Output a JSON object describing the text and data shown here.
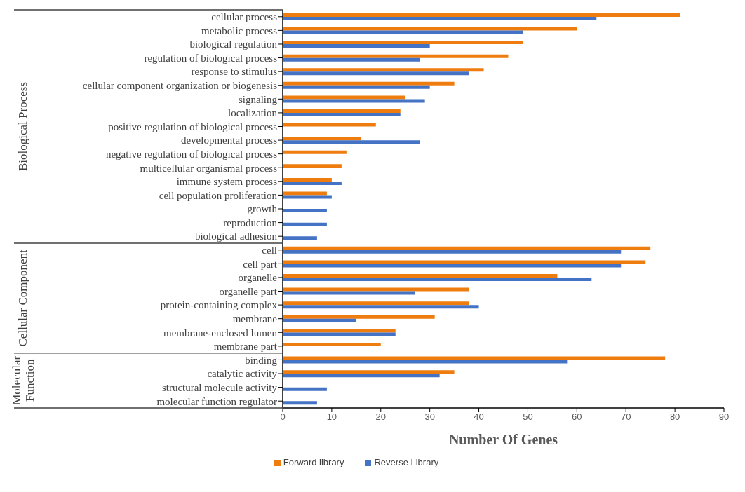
{
  "chart_data": {
    "type": "bar",
    "orientation": "horizontal",
    "xlabel": "Number Of Genes",
    "categories": [
      "cellular process",
      "metabolic process",
      "biological regulation",
      "regulation of biological process",
      "response to stimulus",
      "cellular component organization or biogenesis",
      "signaling",
      "localization",
      "positive regulation of biological process",
      "developmental process",
      "negative regulation of biological process ",
      "multicellular organismal process",
      "immune system process",
      "cell population proliferation",
      "growth",
      "reproduction",
      "biological adhesion",
      "cell",
      "cell part",
      "organelle",
      "organelle part",
      "protein-containing complex",
      "membrane",
      "membrane-enclosed lumen",
      "membrane part",
      "binding",
      "catalytic activity",
      "structural molecule activity",
      "molecular function regulator"
    ],
    "series": [
      {
        "name": "Forward library",
        "color": "#ee7c0e",
        "values": [
          81,
          60,
          49,
          46,
          41,
          35,
          25,
          24,
          19,
          16,
          13,
          12,
          10,
          9,
          null,
          null,
          null,
          75,
          74,
          56,
          38,
          38,
          31,
          23,
          20,
          78,
          35,
          null,
          null
        ]
      },
      {
        "name": "Reverse Library",
        "color": "#4472c4",
        "values": [
          64,
          49,
          30,
          28,
          38,
          30,
          29,
          24,
          null,
          28,
          null,
          null,
          12,
          10,
          9,
          9,
          7,
          69,
          69,
          63,
          27,
          40,
          15,
          23,
          null,
          58,
          32,
          9,
          7
        ]
      }
    ],
    "xlim": [
      0,
      90
    ],
    "xticks": [
      0,
      10,
      20,
      30,
      40,
      50,
      60,
      70,
      80,
      90
    ],
    "annotations": [
      "Biological Process",
      "Cellular Component",
      "Molecular Function"
    ],
    "grid": false,
    "legend": "bottom"
  }
}
